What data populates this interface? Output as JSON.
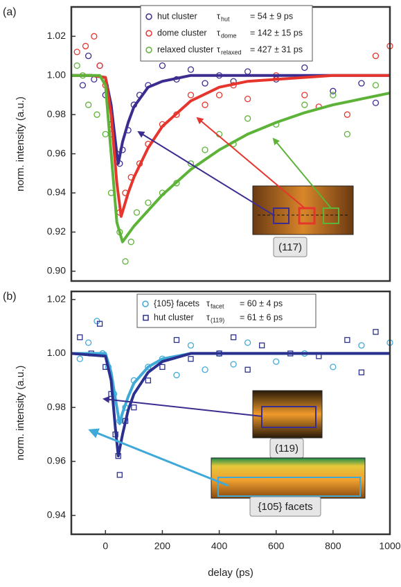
{
  "chart_data": [
    {
      "type": "scatter",
      "panel_label": "(a)",
      "ylabel": "norm. intensity (a.u.)",
      "xlim": [
        -120,
        1000
      ],
      "ylim": [
        0.895,
        1.035
      ],
      "yticks": [
        {
          "value": 0.9,
          "label": "0.90"
        },
        0.92,
        0.94,
        0.96,
        0.98,
        {
          "value": 1.0,
          "label": "1.00"
        },
        1.02
      ],
      "series": [
        {
          "name": "hut cluster",
          "color": "#3b2c90",
          "marker": "circle",
          "tau": "τ",
          "tau_sub": "hut",
          "tau_text": "=  54 ± 9 ps",
          "x": [
            -80,
            -60,
            -40,
            -20,
            0,
            20,
            40,
            50,
            60,
            80,
            100,
            120,
            150,
            200,
            250,
            300,
            350,
            400,
            450,
            500,
            600,
            700,
            800,
            900,
            950
          ],
          "values": [
            0.995,
            1.01,
            0.998,
            1.005,
            0.99,
            0.975,
            0.96,
            0.955,
            0.962,
            0.972,
            0.985,
            0.99,
            0.995,
            1.005,
            0.998,
            1.003,
            0.996,
            1.0,
            0.997,
            1.002,
            0.998,
            1.004,
            0.992,
            0.996,
            0.986
          ]
        },
        {
          "name": "dome cluster",
          "color": "#e5352d",
          "marker": "circle",
          "tau": "τ",
          "tau_sub": "dome",
          "tau_text": "= 142 ± 15 ps",
          "x": [
            -100,
            -70,
            -40,
            -20,
            0,
            20,
            50,
            70,
            90,
            120,
            150,
            200,
            250,
            300,
            350,
            400,
            450,
            500,
            600,
            700,
            750,
            850,
            950,
            1000
          ],
          "values": [
            1.012,
            1.015,
            1.02,
            1.005,
            0.995,
            0.97,
            0.93,
            0.94,
            0.948,
            0.955,
            0.965,
            0.975,
            0.98,
            0.99,
            0.985,
            0.99,
            0.995,
            0.988,
            1.0,
            0.99,
            0.984,
            0.98,
            1.01,
            1.015
          ]
        },
        {
          "name": "relaxed cluster",
          "color": "#5cb338",
          "marker": "circle",
          "tau": "τ",
          "tau_sub": "relaxed",
          "tau_text": "= 427 ± 31 ps",
          "x": [
            -100,
            -80,
            -60,
            -30,
            0,
            20,
            50,
            70,
            90,
            110,
            150,
            200,
            250,
            300,
            350,
            400,
            450,
            500,
            600,
            700,
            800,
            850,
            950
          ],
          "values": [
            1.005,
            1.0,
            0.985,
            0.98,
            0.97,
            0.94,
            0.92,
            0.905,
            0.915,
            0.93,
            0.935,
            0.94,
            0.945,
            0.955,
            0.962,
            0.97,
            0.965,
            0.978,
            0.975,
            0.985,
            0.99,
            0.97,
            0.995
          ]
        }
      ],
      "fits": [
        {
          "color": "#3b2c90",
          "x": [
            -120,
            -50,
            0,
            20,
            40,
            45,
            60,
            80,
            100,
            150,
            200,
            300,
            400,
            600,
            800,
            1000
          ],
          "values": [
            1.0,
            1.0,
            0.999,
            0.985,
            0.96,
            0.955,
            0.966,
            0.976,
            0.984,
            0.994,
            0.997,
            1.0,
            1.0,
            1.0,
            1.0,
            1.0
          ]
        },
        {
          "color": "#e5352d",
          "x": [
            -120,
            -50,
            0,
            20,
            40,
            55,
            80,
            100,
            150,
            200,
            300,
            400,
            500,
            600,
            800,
            1000
          ],
          "values": [
            1.0,
            1.0,
            0.999,
            0.98,
            0.945,
            0.928,
            0.94,
            0.948,
            0.963,
            0.974,
            0.987,
            0.994,
            0.997,
            0.998,
            1.0,
            1.0
          ]
        },
        {
          "color": "#5cb338",
          "x": [
            -120,
            -20,
            0,
            20,
            40,
            60,
            80,
            100,
            150,
            200,
            300,
            400,
            500,
            600,
            700,
            800,
            900,
            1000
          ],
          "values": [
            1.0,
            1.0,
            0.995,
            0.96,
            0.925,
            0.915,
            0.919,
            0.923,
            0.931,
            0.939,
            0.952,
            0.962,
            0.97,
            0.976,
            0.981,
            0.985,
            0.988,
            0.991
          ]
        }
      ],
      "insets": [
        {
          "label": "(117)"
        }
      ]
    },
    {
      "type": "scatter",
      "panel_label": "(b)",
      "ylabel": "norm. intensity (a.u.)",
      "xlabel": "delay (ps)",
      "xlim": [
        -120,
        1000
      ],
      "ylim": [
        0.933,
        1.023
      ],
      "xticks": [
        0,
        200,
        400,
        600,
        800,
        1000
      ],
      "yticks": [
        0.94,
        0.96,
        0.98,
        {
          "value": 1.0,
          "label": "1.00"
        },
        1.02
      ],
      "series": [
        {
          "name": "{105} facets",
          "color": "#3fa9d8",
          "marker": "circle",
          "tau": "τ",
          "tau_sub": "facet",
          "tau_text": "=  60 ± 4 ps",
          "x": [
            -90,
            -60,
            -30,
            -10,
            10,
            30,
            50,
            70,
            100,
            150,
            200,
            250,
            300,
            350,
            400,
            450,
            500,
            600,
            700,
            800,
            900,
            1000
          ],
          "values": [
            0.998,
            1.004,
            1.012,
            1.0,
            0.995,
            0.985,
            0.975,
            0.98,
            0.99,
            0.995,
            0.998,
            0.992,
            1.003,
            0.994,
            1.0,
            0.996,
            1.004,
            0.997,
            1.0,
            0.995,
            1.003,
            1.004
          ]
        },
        {
          "name": "hut cluster",
          "color": "#2b2f8e",
          "marker": "square",
          "tau": "τ",
          "tau_sub": "(119)",
          "tau_text": "=  61 ± 6 ps",
          "x": [
            -90,
            -50,
            -20,
            0,
            20,
            35,
            45,
            50,
            70,
            100,
            150,
            200,
            250,
            300,
            400,
            450,
            500,
            550,
            650,
            750,
            850,
            900,
            950
          ],
          "values": [
            1.006,
            1.0,
            1.011,
            0.995,
            0.985,
            0.97,
            0.962,
            0.955,
            0.975,
            0.98,
            0.99,
            0.995,
            1.005,
            0.998,
            1.0,
            1.006,
            0.994,
            1.003,
            1.0,
            0.999,
            1.005,
            0.993,
            1.008
          ]
        }
      ],
      "fits": [
        {
          "color": "#3fa9d8",
          "x": [
            -120,
            0,
            20,
            40,
            50,
            60,
            80,
            100,
            150,
            200,
            300,
            500,
            1000
          ],
          "values": [
            1.0,
            1.0,
            0.993,
            0.98,
            0.974,
            0.978,
            0.984,
            0.989,
            0.995,
            0.998,
            1.0,
            1.0,
            1.0
          ]
        },
        {
          "color": "#2b2f8e",
          "x": [
            -120,
            0,
            20,
            35,
            45,
            60,
            80,
            100,
            150,
            200,
            300,
            500,
            1000
          ],
          "values": [
            1.0,
            0.999,
            0.99,
            0.972,
            0.962,
            0.97,
            0.979,
            0.985,
            0.993,
            0.997,
            1.0,
            1.0,
            1.0
          ]
        }
      ],
      "insets": [
        {
          "label": "(119)"
        },
        {
          "label": "{105} facets"
        }
      ]
    }
  ]
}
